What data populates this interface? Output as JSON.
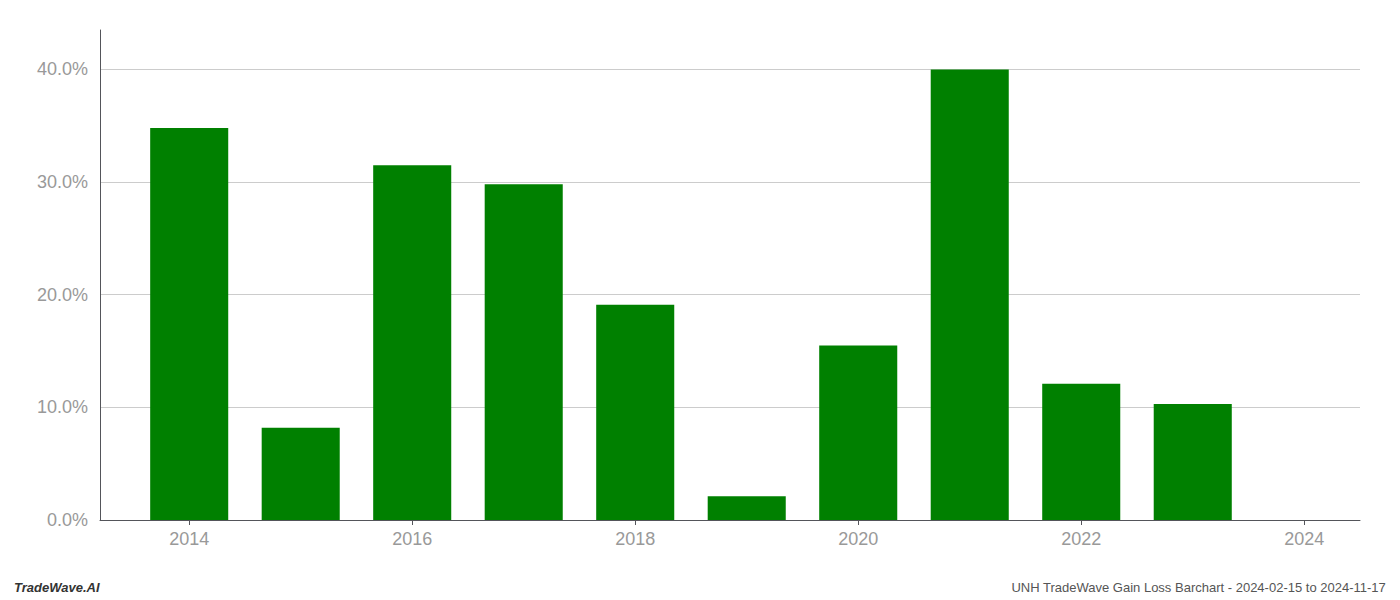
{
  "chart_data": {
    "type": "bar",
    "x": [
      2014,
      2015,
      2016,
      2017,
      2018,
      2019,
      2020,
      2021,
      2022,
      2023
    ],
    "values": [
      0.348,
      0.082,
      0.315,
      0.298,
      0.191,
      0.021,
      0.155,
      0.4,
      0.121,
      0.103
    ],
    "color": "#008000",
    "xlim": [
      2013.2,
      2024.5
    ],
    "xticks": [
      2014,
      2016,
      2018,
      2020,
      2022,
      2024
    ],
    "ylim": [
      0,
      0.435
    ],
    "yticks": [
      {
        "value": 0.0,
        "label": "0.0%"
      },
      {
        "value": 0.1,
        "label": "10.0%"
      },
      {
        "value": 0.2,
        "label": "20.0%"
      },
      {
        "value": 0.3,
        "label": "30.0%"
      },
      {
        "value": 0.4,
        "label": "40.0%"
      }
    ],
    "grid": true,
    "annotations": [
      "TradeWave.AI",
      "UNH TradeWave Gain Loss Barchart - 2024-02-15 to 2024-11-17"
    ]
  }
}
